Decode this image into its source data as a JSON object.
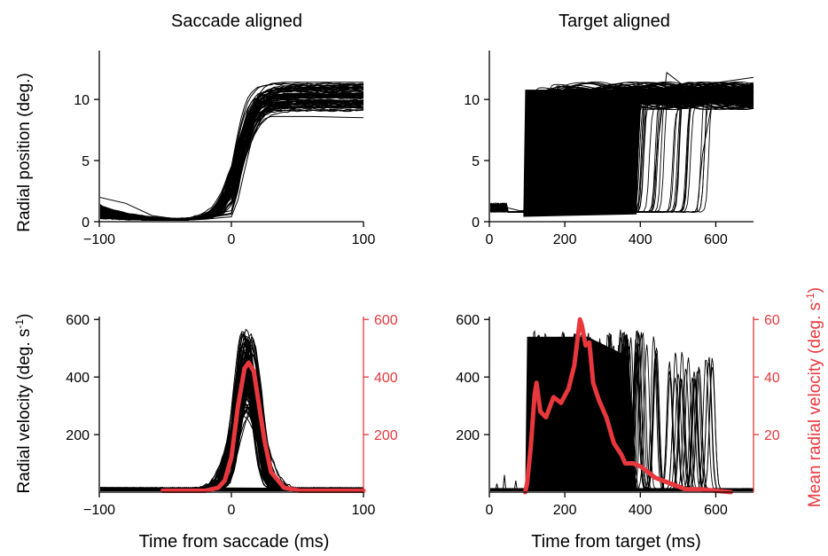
{
  "labels": {
    "col_left_title": "Saccade aligned",
    "col_right_title": "Target aligned",
    "y_position": "Radial position (deg.)",
    "y_velocity": "Radial velocity (deg. s",
    "y_velocity_sup": "-1",
    "y_velocity_close": ")",
    "y_mean_velocity": "Mean radial velocity (deg. s",
    "y_mean_velocity_sup": "-1",
    "y_mean_velocity_close": ")",
    "x_saccade": "Time from saccade (ms)",
    "x_target": "Time from target (ms)"
  },
  "colors": {
    "traces": "#000000",
    "mean": "#e8383d",
    "axis": "#000000"
  },
  "chart_data": [
    {
      "id": "position-saccade",
      "type": "line",
      "xlabel": "",
      "ylabel": "Radial position (deg.)",
      "xlim": [
        -100,
        100
      ],
      "ylim": [
        0,
        14
      ],
      "xticks": [
        -100,
        0,
        100
      ],
      "yticks": [
        0,
        5,
        10
      ],
      "series": [
        {
          "x": [
            -100,
            -80,
            -60,
            -40,
            -20,
            0,
            5,
            10,
            15,
            20,
            25,
            30,
            40,
            60,
            100
          ],
          "y": [
            1.0,
            0.6,
            0.2,
            0.1,
            0.3,
            0.6,
            2.5,
            5.5,
            8.0,
            9.6,
            10.2,
            10.4,
            10.4,
            10.4,
            10.4
          ]
        },
        {
          "x": [
            -100,
            -80,
            -60,
            -40,
            -20,
            0,
            5,
            10,
            15,
            20,
            25,
            30,
            40,
            60,
            100
          ],
          "y": [
            2.0,
            1.5,
            0.5,
            0.2,
            0.5,
            0.9,
            3.0,
            6.0,
            8.8,
            10.3,
            11.0,
            11.3,
            11.4,
            11.4,
            11.4
          ]
        },
        {
          "x": [
            -100,
            -80,
            -60,
            -40,
            -20,
            0,
            5,
            10,
            15,
            20,
            25,
            30,
            40,
            60,
            100
          ],
          "y": [
            0.5,
            0.3,
            0.1,
            0.1,
            0.2,
            0.4,
            1.8,
            4.2,
            6.5,
            7.8,
            8.4,
            8.6,
            8.6,
            8.6,
            8.5
          ]
        },
        {
          "x": [
            -100,
            -80,
            -60,
            -40,
            -20,
            0,
            5,
            10,
            15,
            20,
            25,
            30,
            40,
            60,
            100
          ],
          "y": [
            0.8,
            0.4,
            0.2,
            0.1,
            0.3,
            0.7,
            2.8,
            6.0,
            8.4,
            9.4,
            9.8,
            10.0,
            10.0,
            10.0,
            9.9
          ]
        }
      ]
    },
    {
      "id": "position-target",
      "type": "line",
      "xlabel": "",
      "ylabel": "",
      "xlim": [
        0,
        700
      ],
      "ylim": [
        0,
        14
      ],
      "xticks": [
        0,
        200,
        400,
        600
      ],
      "yticks": [
        0,
        5,
        10
      ],
      "onset_range": [
        90,
        580
      ],
      "baseline": 0.8,
      "plateau": 10.4,
      "series": [
        {
          "x": [
            0,
            80,
            100,
            110,
            130,
            160,
            700
          ],
          "y": [
            1.5,
            0.9,
            0.9,
            6.0,
            10.6,
            10.8,
            10.5
          ]
        },
        {
          "x": [
            0,
            300,
            340,
            355,
            380,
            420,
            700
          ],
          "y": [
            0.8,
            0.8,
            0.8,
            6.0,
            10.4,
            10.6,
            10.4
          ]
        },
        {
          "x": [
            0,
            500,
            550,
            565,
            590,
            620,
            700
          ],
          "y": [
            0.8,
            0.8,
            0.8,
            5.5,
            9.8,
            10.0,
            10.0
          ]
        },
        {
          "x": [
            0,
            420,
            430,
            445,
            470,
            520,
            700
          ],
          "y": [
            0.8,
            0.8,
            0.8,
            6.0,
            12.2,
            11.0,
            11.8
          ]
        }
      ]
    },
    {
      "id": "velocity-saccade",
      "type": "line",
      "xlabel": "Time from saccade (ms)",
      "ylabel": "Radial velocity (deg. s-1)",
      "xlim": [
        -100,
        100
      ],
      "ylim": [
        0,
        610
      ],
      "xticks": [
        -100,
        0,
        100
      ],
      "yticks": [
        200,
        400,
        600
      ],
      "y2lim": [
        0,
        610
      ],
      "y2ticks": [
        200,
        400,
        600
      ],
      "series": [
        {
          "name": "trace",
          "x": [
            -100,
            -10,
            -5,
            0,
            5,
            10,
            15,
            20,
            25,
            30,
            40,
            100
          ],
          "y": [
            15,
            10,
            25,
            90,
            300,
            520,
            550,
            450,
            250,
            80,
            10,
            5
          ]
        },
        {
          "name": "trace",
          "x": [
            -100,
            -10,
            -5,
            0,
            5,
            10,
            15,
            20,
            25,
            30,
            40,
            100
          ],
          "y": [
            10,
            8,
            15,
            60,
            200,
            280,
            300,
            260,
            160,
            60,
            8,
            5
          ]
        },
        {
          "name": "trace",
          "x": [
            -100,
            -10,
            -5,
            0,
            5,
            10,
            15,
            20,
            25,
            30,
            40,
            100
          ],
          "y": [
            12,
            8,
            20,
            75,
            280,
            480,
            530,
            430,
            230,
            70,
            10,
            5
          ]
        },
        {
          "name": "mean",
          "x": [
            -52,
            -20,
            -10,
            -5,
            0,
            5,
            10,
            13,
            17,
            20,
            25,
            30,
            40,
            52,
            72,
            100
          ],
          "y": [
            5,
            5,
            15,
            40,
            120,
            300,
            430,
            450,
            420,
            330,
            180,
            70,
            15,
            5,
            5,
            5
          ]
        }
      ]
    },
    {
      "id": "velocity-target",
      "type": "line",
      "xlabel": "Time from target (ms)",
      "ylabel": "",
      "xlim": [
        0,
        700
      ],
      "ylim": [
        0,
        610
      ],
      "xticks": [
        0,
        200,
        400,
        600
      ],
      "yticks": [
        200,
        400,
        600
      ],
      "y2label": "Mean radial velocity (deg. s-1)",
      "y2lim": [
        0,
        61
      ],
      "y2ticks": [
        20,
        40,
        60
      ],
      "onset_range": [
        90,
        580
      ],
      "series": [
        {
          "name": "mean",
          "x": [
            95,
            100,
            110,
            120,
            125,
            135,
            150,
            170,
            190,
            210,
            225,
            240,
            245,
            255,
            265,
            275,
            290,
            310,
            330,
            350,
            360,
            380,
            400,
            420,
            440,
            460,
            480,
            500,
            520,
            560,
            600,
            640
          ],
          "y": [
            0,
            3,
            16,
            34,
            38,
            28,
            26,
            33,
            31,
            36,
            44,
            60,
            58,
            51,
            52,
            38,
            32,
            26,
            17,
            13,
            10,
            10,
            9,
            7,
            5,
            4,
            3,
            2,
            1,
            1,
            0.5,
            0
          ]
        }
      ]
    }
  ]
}
